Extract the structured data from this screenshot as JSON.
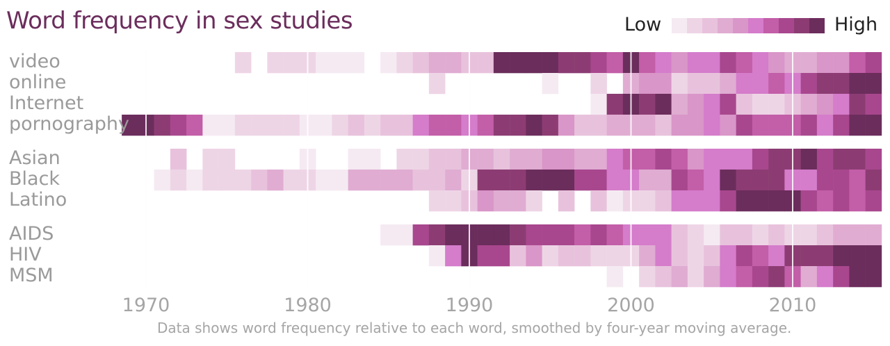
{
  "chart_data": {
    "type": "heatmap",
    "title": "Word frequency in sex studies",
    "legend": {
      "low_label": "Low",
      "high_label": "High"
    },
    "color_scale": [
      "#f5eaf2",
      "#eed5e6",
      "#e8c2dc",
      "#e0acd2",
      "#d996c8",
      "#d57ccb",
      "#c35ea8",
      "#a8478e",
      "#8c3c73",
      "#6b2d5c"
    ],
    "x_ticks": [
      1970,
      1980,
      1990,
      2000,
      2010
    ],
    "x_range": [
      1969,
      2015
    ],
    "groups": [
      {
        "rows": [
          {
            "label": "video",
            "values": {
              "1976": 2,
              "1978": 2,
              "1979": 2,
              "1980": 2,
              "1981": 1,
              "1982": 1,
              "1983": 1,
              "1985": 1,
              "1986": 2,
              "1987": 3,
              "1988": 4,
              "1989": 4,
              "1990": 3,
              "1991": 3,
              "1992": 10,
              "1993": 10,
              "1994": 10,
              "1995": 10,
              "1996": 9,
              "1997": 9,
              "1998": 8,
              "1999": 7,
              "2000": 10,
              "2001": 7,
              "2002": 6,
              "2003": 5,
              "2004": 6,
              "2005": 6,
              "2006": 8,
              "2007": 7,
              "2008": 6,
              "2009": 5,
              "2010": 4,
              "2011": 4,
              "2012": 5,
              "2013": 5,
              "2014": 7,
              "2015": 8
            }
          },
          {
            "label": "online",
            "values": {
              "1988": 2,
              "1995": 1,
              "1998": 2,
              "2000": 4,
              "2001": 5,
              "2002": 5,
              "2003": 2,
              "2004": 3,
              "2005": 3,
              "2006": 4,
              "2007": 6,
              "2008": 6,
              "2009": 7,
              "2010": 6,
              "2011": 8,
              "2012": 9,
              "2013": 9,
              "2014": 10,
              "2015": 10
            }
          },
          {
            "label": "Internet",
            "values": {
              "1998": 1,
              "1999": 9,
              "2000": 10,
              "2001": 9,
              "2002": 10,
              "2003": 4,
              "2004": 5,
              "2005": 6,
              "2006": 8,
              "2007": 3,
              "2008": 2,
              "2009": 2,
              "2010": 3,
              "2011": 4,
              "2012": 5,
              "2013": 6,
              "2014": 9,
              "2015": 8
            }
          },
          {
            "label": "pornography",
            "values": {
              "1969": 10,
              "1970": 10,
              "1971": 9,
              "1972": 8,
              "1973": 7,
              "1974": 1,
              "1975": 1,
              "1976": 2,
              "1977": 2,
              "1978": 2,
              "1979": 2,
              "1980": 1,
              "1981": 1,
              "1982": 2,
              "1983": 3,
              "1984": 2,
              "1985": 3,
              "1986": 3,
              "1987": 6,
              "1988": 7,
              "1989": 7,
              "1990": 6,
              "1991": 7,
              "1992": 9,
              "1993": 9,
              "1994": 10,
              "1995": 9,
              "1996": 5,
              "1997": 3,
              "1998": 3,
              "1999": 4,
              "2000": 4,
              "2001": 4,
              "2002": 3,
              "2003": 5,
              "2004": 5,
              "2005": 6,
              "2006": 5,
              "2007": 8,
              "2008": 7,
              "2009": 7,
              "2010": 7,
              "2011": 8,
              "2012": 6,
              "2013": 8,
              "2014": 10,
              "2015": 10
            }
          }
        ]
      },
      {
        "rows": [
          {
            "label": "Asian",
            "values": {
              "1972": 3,
              "1974": 2,
              "1975": 2,
              "1980": 1,
              "1983": 1,
              "1984": 1,
              "1986": 2,
              "1987": 2,
              "1988": 3,
              "1989": 3,
              "1990": 4,
              "1991": 4,
              "1992": 3,
              "1993": 4,
              "1994": 4,
              "1995": 5,
              "1996": 5,
              "1997": 4,
              "1998": 4,
              "1999": 6,
              "2000": 7,
              "2001": 7,
              "2002": 8,
              "2003": 7,
              "2004": 5,
              "2005": 6,
              "2006": 6,
              "2007": 6,
              "2008": 8,
              "2009": 9,
              "2010": 9,
              "2011": 10,
              "2012": 8,
              "2013": 9,
              "2014": 9,
              "2015": 8
            }
          },
          {
            "label": "Black",
            "values": {
              "1971": 1,
              "1972": 2,
              "1973": 1,
              "1974": 2,
              "1975": 2,
              "1976": 2,
              "1977": 3,
              "1978": 4,
              "1979": 2,
              "1980": 2,
              "1981": 1,
              "1982": 1,
              "1983": 4,
              "1984": 4,
              "1985": 4,
              "1986": 4,
              "1987": 3,
              "1988": 3,
              "1989": 4,
              "1990": 2,
              "1991": 9,
              "1992": 9,
              "1993": 9,
              "1994": 10,
              "1995": 10,
              "1996": 10,
              "1997": 8,
              "1998": 8,
              "1999": 6,
              "2000": 6,
              "2001": 4,
              "2002": 4,
              "2003": 8,
              "2004": 7,
              "2005": 6,
              "2006": 10,
              "2007": 9,
              "2008": 9,
              "2009": 9,
              "2010": 6,
              "2011": 6,
              "2012": 8,
              "2013": 8,
              "2014": 7,
              "2015": 9
            }
          },
          {
            "label": "Latino",
            "values": {
              "1988": 2,
              "1989": 2,
              "1990": 3,
              "1991": 5,
              "1992": 4,
              "1993": 4,
              "1994": 2,
              "1996": 3,
              "1998": 3,
              "1999": 1,
              "2000": 2,
              "2001": 2,
              "2002": 3,
              "2003": 6,
              "2004": 6,
              "2005": 6,
              "2006": 8,
              "2007": 10,
              "2008": 10,
              "2009": 10,
              "2010": 10,
              "2011": 8,
              "2012": 7,
              "2013": 8,
              "2014": 7,
              "2015": 8
            }
          }
        ]
      },
      {
        "rows": [
          {
            "label": "AIDS",
            "values": {
              "1985": 1,
              "1986": 1,
              "1987": 8,
              "1988": 9,
              "1989": 10,
              "1990": 10,
              "1991": 10,
              "1992": 10,
              "1993": 9,
              "1994": 8,
              "1995": 8,
              "1996": 8,
              "1997": 7,
              "1998": 8,
              "1999": 7,
              "2000": 6,
              "2001": 6,
              "2002": 6,
              "2003": 3,
              "2004": 2,
              "2005": 1,
              "2006": 3,
              "2007": 3,
              "2008": 2,
              "2009": 3,
              "2010": 2,
              "2011": 2,
              "2012": 3,
              "2013": 4,
              "2014": 4,
              "2015": 4
            }
          },
          {
            "label": "HIV",
            "values": {
              "1988": 1,
              "1989": 6,
              "1990": 10,
              "1991": 8,
              "1992": 8,
              "1993": 3,
              "1994": 5,
              "1995": 2,
              "1996": 3,
              "1997": 3,
              "1998": 2,
              "1999": 2,
              "2000": 2,
              "2001": 4,
              "2002": 6,
              "2003": 3,
              "2004": 2,
              "2005": 3,
              "2006": 6,
              "2007": 8,
              "2008": 7,
              "2009": 6,
              "2010": 9,
              "2011": 9,
              "2012": 9,
              "2013": 10,
              "2014": 10,
              "2015": 10
            }
          },
          {
            "label": "MSM",
            "values": {
              "1999": 1,
              "2001": 2,
              "2002": 3,
              "2003": 4,
              "2004": 2,
              "2005": 4,
              "2006": 6,
              "2007": 7,
              "2008": 8,
              "2009": 9,
              "2010": 7,
              "2011": 4,
              "2012": 6,
              "2013": 8,
              "2014": 10,
              "2015": 10
            }
          }
        ]
      }
    ]
  },
  "footnote": "Data shows word frequency relative to each word, smoothed by four-year moving average."
}
